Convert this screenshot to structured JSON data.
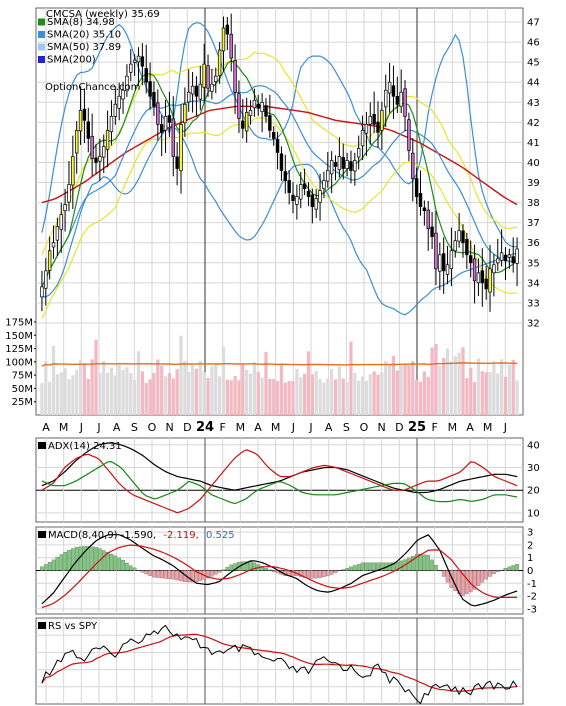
{
  "chart_data": [
    {
      "type": "candlestick",
      "panel": "price",
      "title": "CMCSA (weekly) 35.69",
      "watermark": "OptionChance.com",
      "legend": [
        {
          "name": "SMA(8) 34.98",
          "color": "#1f8a1f"
        },
        {
          "name": "SMA(20) 35.10",
          "color": "#3b8fd6"
        },
        {
          "name": "SMA(50) 37.89",
          "color": "#9ec9ee"
        },
        {
          "name": "SMA(200)",
          "color": "#2424c8"
        }
      ],
      "legend_placement": "top-left",
      "ylim": [
        31.5,
        47.5
      ],
      "y_ticks": [
        32,
        33,
        34,
        35,
        36,
        37,
        38,
        39,
        40,
        41,
        42,
        43,
        44,
        45,
        46,
        47
      ],
      "x_month_labels": [
        "A",
        "M",
        "J",
        "J",
        "A",
        "S",
        "O",
        "N",
        "D",
        "24",
        "F",
        "M",
        "A",
        "M",
        "J",
        "J",
        "A",
        "S",
        "O",
        "N",
        "D",
        "25",
        "F",
        "M",
        "A",
        "M",
        "J"
      ],
      "x_month_bold": [
        "24",
        "25"
      ],
      "weekly_close": [
        33.8,
        34.6,
        35.6,
        36.0,
        36.8,
        37.4,
        37.9,
        38.9,
        40.3,
        41.6,
        42.6,
        42.1,
        41.2,
        40.2,
        40.0,
        40.3,
        40.8,
        41.6,
        42.3,
        42.9,
        43.3,
        43.6,
        44.3,
        44.9,
        45.1,
        45.3,
        44.8,
        44.0,
        43.3,
        42.8,
        41.9,
        41.5,
        42.3,
        42.0,
        40.3,
        39.7,
        41.9,
        42.9,
        43.5,
        43.8,
        43.3,
        43.9,
        44.9,
        43.7,
        43.9,
        44.3,
        45.6,
        46.7,
        46.4,
        45.2,
        43.5,
        42.2,
        41.7,
        42.5,
        42.6,
        43.1,
        42.7,
        43.0,
        42.3,
        41.6,
        41.2,
        40.5,
        39.6,
        39.1,
        38.5,
        38.1,
        38.3,
        38.9,
        38.7,
        38.3,
        37.8,
        38.2,
        38.6,
        39.1,
        39.6,
        40.1,
        39.8,
        40.3,
        39.7,
        40.1,
        39.6,
        40.1,
        40.7,
        41.6,
        41.9,
        42.3,
        41.9,
        41.5,
        42.6,
        43.6,
        44.0,
        43.3,
        42.9,
        43.5,
        42.3,
        40.6,
        39.2,
        38.3,
        37.8,
        37.6,
        36.7,
        36.3,
        34.7,
        35.4,
        34.6,
        34.9,
        35.6,
        36.1,
        36.6,
        36.0,
        35.4,
        35.0,
        34.1,
        34.5,
        34.0,
        33.7,
        34.7,
        34.9,
        35.2,
        35.5,
        35.1,
        35.4,
        35.0,
        35.69
      ],
      "sma8_end": 34.98,
      "sma20_end": 35.1,
      "sma50_end": 37.89,
      "bollinger_upper_approx": [
        36.5,
        37.8,
        39.5,
        41.2,
        42.6,
        43.6,
        44.3,
        44.5,
        44.5,
        44.7,
        45.3,
        45.9,
        46.4,
        46.7,
        46.9,
        46.5,
        45.8,
        44.9,
        44.2,
        43.5,
        43.0,
        42.6,
        42.1,
        41.3,
        43.0,
        45.1,
        46.6,
        46.9,
        47.0,
        46.8,
        46.4,
        45.7,
        45.0,
        44.2,
        43.5,
        43.0,
        42.3,
        41.8,
        41.4,
        41.2,
        41.2,
        41.1,
        41.2,
        41.5,
        42.0,
        43.0,
        44.6,
        45.0,
        45.3,
        45.3,
        45.3,
        45.1,
        44.8,
        44.3,
        43.8,
        43.3,
        42.5,
        42.0,
        41.4,
        40.8,
        40.8,
        40.5,
        40.2,
        39.7,
        39.3,
        39.0,
        38.9,
        39.4,
        40.4,
        42.3,
        43.7,
        44.7,
        45.4,
        45.8,
        46.4,
        45.9,
        43.9,
        41.5,
        39.5,
        38.3,
        37.6,
        37.0,
        36.5,
        36.0,
        35.8,
        35.8
      ],
      "bollinger_lower_approx": [
        33.3,
        33.3,
        33.6,
        34.0,
        34.7,
        35.7,
        36.6,
        37.6,
        38.3,
        38.9,
        39.0,
        39.3,
        39.2,
        38.8,
        38.5,
        38.4,
        38.6,
        39.0,
        39.6,
        40.2,
        40.7,
        41.2,
        41.6,
        41.8,
        41.7,
        41.3,
        40.8,
        40.1,
        39.3,
        39.0,
        38.5,
        38.1,
        37.6,
        37.2,
        36.8,
        36.4,
        36.2,
        36.1,
        36.3,
        36.7,
        37.2,
        37.8,
        38.4,
        39.0,
        39.5,
        39.8,
        39.9,
        39.9,
        39.9,
        39.6,
        39.0,
        38.5,
        37.9,
        37.2,
        36.7,
        36.3,
        35.6,
        35.0,
        34.7,
        34.0,
        33.3,
        32.9,
        32.8,
        32.7,
        32.5,
        32.4,
        32.6,
        32.9,
        33.2,
        33.4,
        33.7,
        33.8,
        33.9,
        34.1,
        34.3,
        34.5,
        34.6,
        34.7,
        34.8,
        34.9,
        35.0,
        35.1,
        35.2,
        35.3,
        35.4,
        35.5
      ],
      "sma200_approx": [
        38.0,
        38.2,
        38.6,
        39.0,
        39.5,
        40.0,
        40.5,
        40.9,
        41.3,
        41.7,
        42.0,
        42.3,
        42.6,
        42.7,
        42.8,
        42.8,
        42.8,
        42.7,
        42.6,
        42.5,
        42.3,
        42.1,
        42.0,
        41.9,
        41.8,
        41.6,
        41.3,
        41.0,
        40.6,
        40.2,
        39.8,
        39.3,
        38.8,
        38.3,
        37.9
      ]
    },
    {
      "type": "bar",
      "panel": "volume",
      "y_ticks": [
        "175M",
        "150M",
        "125M",
        "100M",
        "75M",
        "50M",
        "25M"
      ],
      "y_tick_values": [
        175,
        150,
        125,
        100,
        75,
        50,
        25
      ],
      "ylim": [
        0,
        175
      ],
      "unit": "M",
      "moving_average_end": 103
    },
    {
      "type": "line",
      "panel": "adx",
      "title": "ADX(14) 24.31",
      "series": [
        {
          "name": "ADX(14) 24.31",
          "color": "#000000"
        },
        {
          "name": "",
          "color": "#cc1010"
        },
        {
          "name": "",
          "color": "#118811"
        }
      ],
      "y_ticks": [
        10,
        20,
        30,
        40
      ],
      "ylim": [
        6,
        43
      ],
      "reference_line": 20
    },
    {
      "type": "line",
      "panel": "macd",
      "title": "MACD(8,40,9) -1.590,",
      "values_text": [
        {
          "text": "-2.119,",
          "color": "#cc1010"
        },
        {
          "text": "0.525",
          "color": "#2f6fd0"
        }
      ],
      "y_ticks": [
        3,
        2,
        1,
        0,
        -1,
        -2,
        -3
      ],
      "ylim": [
        -3.4,
        3.4
      ]
    },
    {
      "type": "line",
      "panel": "rs",
      "title": "RS vs SPY",
      "series": [
        {
          "name": "RS vs SPY",
          "color": "#000000"
        },
        {
          "name": "",
          "color": "#cc1010"
        }
      ]
    }
  ]
}
